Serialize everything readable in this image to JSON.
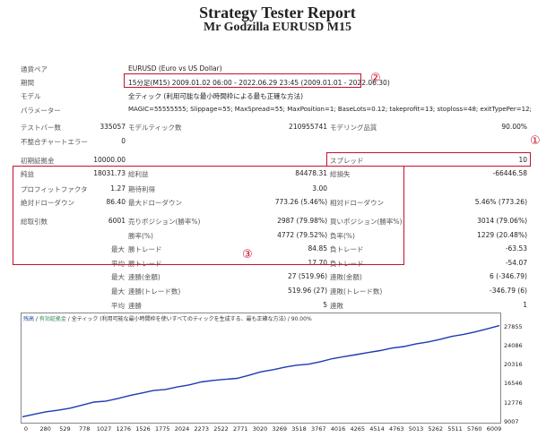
{
  "title": "Strategy Tester Report",
  "subtitle": "Mr Godzilla EURUSD M15",
  "rows": {
    "symbol": {
      "label": "通貨ペア",
      "value": "EURUSD (Euro vs US Dollar)"
    },
    "period": {
      "label": "期間",
      "value": "15分足(M15) 2009.01.02 06:00 - 2022.06.29 23:45 (2009.01.01 - 2022.06.30)"
    },
    "model": {
      "label": "モデル",
      "value": "全ティック (利用可能な最小時間枠による最も正確な方法)"
    },
    "params": {
      "label": "パラメーター",
      "value": "MAGIC=55555555; Slippage=55; MaxSpread=55; MaxPosition=1; BaseLots=0.12; takeprofit=13; stoploss=48; exitTypePer=12;"
    },
    "bars": {
      "label": "テストバー数",
      "value": "335057"
    },
    "ticks": {
      "label": "モデルティック数",
      "value": "210955741"
    },
    "quality": {
      "label": "モデリング品質",
      "value": "90.00%"
    },
    "mismatch": {
      "label": "不整合チャートエラー",
      "value": "0"
    },
    "deposit": {
      "label": "初期証拠金",
      "value": "10000.00"
    },
    "spread": {
      "label": "スプレッド",
      "value": "10"
    },
    "net_profit": {
      "label": "純益",
      "value": "18031.73"
    },
    "gross_profit": {
      "label": "総利益",
      "value": "84478.31"
    },
    "gross_loss": {
      "label": "総損失",
      "value": "-66446.58"
    },
    "profit_factor": {
      "label": "プロフィットファクタ",
      "value": "1.27"
    },
    "expected_payoff": {
      "label": "期待利得",
      "value": "3.00"
    },
    "abs_dd": {
      "label": "絶対ドローダウン",
      "value": "86.40"
    },
    "max_dd": {
      "label": "最大ドローダウン",
      "value": "773.26 (5.46%)"
    },
    "rel_dd": {
      "label": "相対ドローダウン",
      "value": "5.46% (773.26)"
    },
    "total_trades": {
      "label": "総取引数",
      "value": "6001"
    },
    "short_pos": {
      "label": "売りポジション(勝率%)",
      "value": "2987 (79.98%)"
    },
    "long_pos": {
      "label": "買いポジション(勝率%)",
      "value": "3014 (79.06%)"
    },
    "win_rate": {
      "label": "勝率(%)",
      "value": "4772 (79.52%)"
    },
    "loss_rate": {
      "label": "負率(%)",
      "value": "1229 (20.48%)"
    },
    "largest_win": {
      "prefix": "最大",
      "label": "勝トレード",
      "value": "84.85"
    },
    "largest_loss": {
      "label": "負トレード",
      "value": "-63.53"
    },
    "avg_win": {
      "prefix": "平均",
      "label": "勝トレード",
      "value": "17.70"
    },
    "avg_loss": {
      "label": "負トレード",
      "value": "-54.07"
    },
    "max_consec_wins": {
      "prefix": "最大",
      "label": "連勝(金額)",
      "value": "27 (519.96)"
    },
    "max_consec_losses": {
      "label": "連敗(金額)",
      "value": "6 (-346.79)"
    },
    "max_consec_profit": {
      "prefix": "最大",
      "label": "連勝(トレード数)",
      "value": "519.96 (27)"
    },
    "max_consec_loss": {
      "label": "連敗(トレード数)",
      "value": "-346.79 (6)"
    },
    "avg_consec_wins": {
      "prefix": "平均",
      "label": "連勝",
      "value": "5"
    },
    "avg_consec_losses": {
      "label": "連敗",
      "value": "1"
    }
  },
  "markers": {
    "m1": "①",
    "m2": "②",
    "m3": "③"
  },
  "chart_header": {
    "balance": "残高",
    "sep1": " / ",
    "equity": "有効証拠金",
    "sep2": " / ",
    "rest": "全ティック (利用可能な最小時間枠を使いすべてのティックを生成する、最も正確な方法) / 90.00%"
  },
  "colors": {
    "accent_red": "#c8102e",
    "line": "#1f3ab0"
  },
  "chart_data": {
    "type": "line",
    "x_ticks": [
      0,
      280,
      529,
      778,
      1027,
      1276,
      1526,
      1775,
      2024,
      2273,
      2522,
      2771,
      3020,
      3269,
      3518,
      3767,
      4016,
      4265,
      4514,
      4763,
      5013,
      5262,
      5511,
      5760,
      6009
    ],
    "y_ticks": [
      9007,
      12776,
      16546,
      20316,
      24086,
      27855
    ],
    "ylim": [
      9007,
      28500
    ],
    "xlim": [
      0,
      6001
    ],
    "series": [
      {
        "x": [
          0,
          150,
          300,
          450,
          600,
          750,
          900,
          1050,
          1200,
          1350,
          1500,
          1650,
          1800,
          1950,
          2100,
          2250,
          2400,
          2550,
          2700,
          2850,
          3000,
          3150,
          3300,
          3450,
          3600,
          3750,
          3900,
          4050,
          4200,
          4350,
          4500,
          4650,
          4800,
          4950,
          5100,
          5250,
          5400,
          5550,
          5700,
          5850,
          6001
        ],
        "y": [
          10000,
          10500,
          11000,
          11300,
          11700,
          12300,
          12900,
          13100,
          13600,
          14200,
          14700,
          15200,
          15400,
          15900,
          16300,
          16900,
          17200,
          17400,
          17600,
          18200,
          18900,
          19300,
          19800,
          20200,
          20400,
          20900,
          21500,
          21900,
          22300,
          22700,
          23100,
          23600,
          23900,
          24400,
          24800,
          25300,
          25900,
          26300,
          26800,
          27400,
          28031
        ]
      }
    ]
  }
}
